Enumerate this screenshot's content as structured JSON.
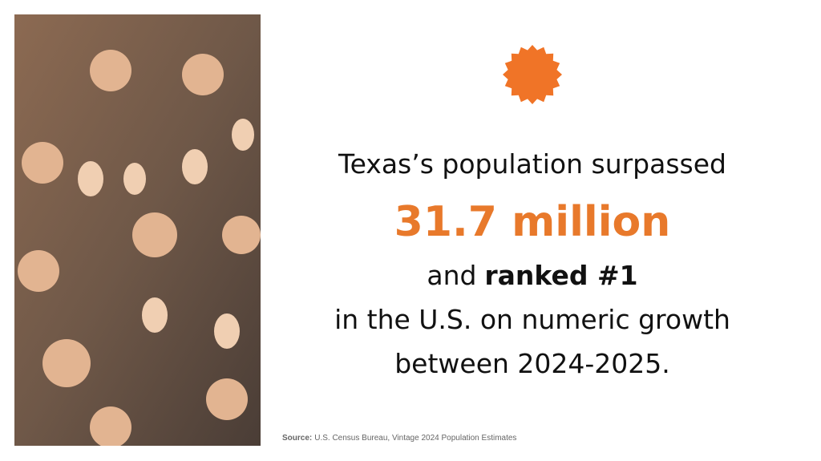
{
  "headline": {
    "line1": "Texas’s population surpassed",
    "figure": "31.7 million",
    "line3": {
      "lead": "and",
      "bold": "ranked #1"
    },
    "line4": "in the U.S. on numeric growth",
    "line5": "between 2024-2025."
  },
  "source": {
    "label": "Source:",
    "text": "U.S. Census Bureau, Vintage 2024 Population Estimates"
  }
}
